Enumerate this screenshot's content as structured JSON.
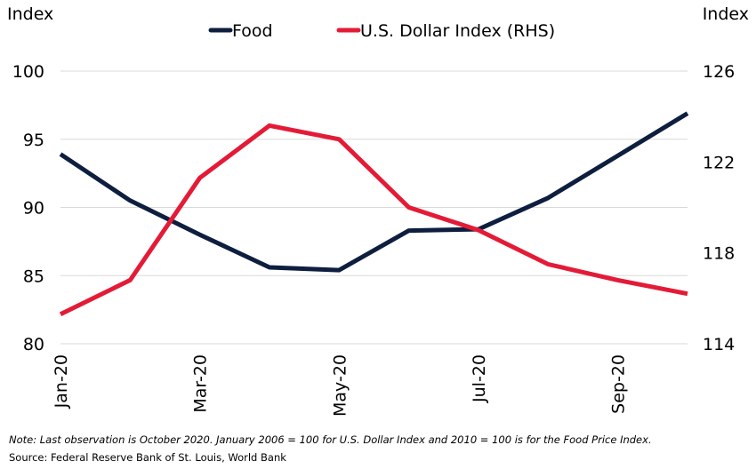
{
  "chart_data": {
    "type": "line",
    "x": [
      "Jan-20",
      "Feb-20",
      "Mar-20",
      "Apr-20",
      "May-20",
      "Jun-20",
      "Jul-20",
      "Aug-20",
      "Sep-20",
      "Oct-20"
    ],
    "x_tick_labels": [
      "Jan-20",
      "Mar-20",
      "May-20",
      "Jul-20",
      "Sep-20"
    ],
    "left_axis": {
      "label": "Index",
      "ylim": [
        80,
        100
      ],
      "ticks": [
        100,
        95,
        90,
        85,
        80
      ]
    },
    "right_axis": {
      "label": "Index",
      "ylim": [
        114,
        126
      ],
      "ticks": [
        126,
        122,
        118,
        114
      ]
    },
    "series": [
      {
        "name": "Food",
        "axis": "left",
        "color": "#0e1e3f",
        "values": [
          93.9,
          90.5,
          88.0,
          85.6,
          85.4,
          88.3,
          88.4,
          90.7,
          93.8,
          96.9
        ]
      },
      {
        "name": "U.S. Dollar Index (RHS)",
        "axis": "right",
        "color": "#e31b37",
        "values": [
          115.3,
          116.8,
          121.3,
          123.6,
          123.0,
          120.0,
          119.0,
          117.5,
          116.8,
          116.2
        ]
      }
    ],
    "grid": true,
    "legend_position": "top-center",
    "note": "Note: Last observation is October 2020. January 2006 = 100 for U.S. Dollar Index and 2010 = 100 is for the Food Price Index.",
    "source": "Source: Federal Reserve Bank of St. Louis, World Bank"
  }
}
